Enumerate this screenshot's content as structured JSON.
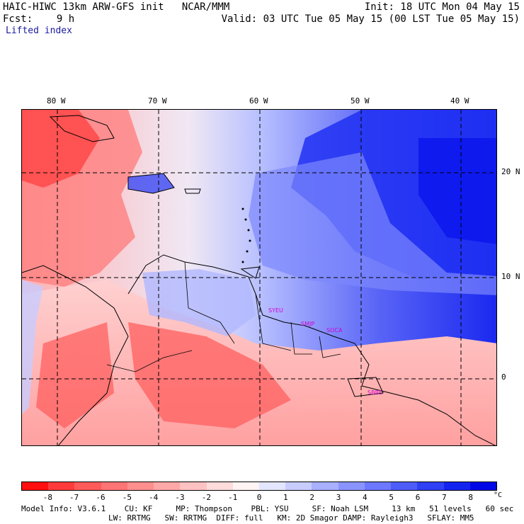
{
  "header": {
    "line1_left": "HAIC-HIWC 13km ARW-GFS init   NCAR/MMM",
    "line1_right": "Init: 18 UTC Mon 04 May 15",
    "line2_left": "Fcst:    9 h",
    "line2_right": "Valid: 03 UTC Tue 05 May 15 (00 LST Tue 05 May 15)",
    "field": "Lifted index"
  },
  "map": {
    "lon_labels": [
      "80 W",
      "70 W",
      "60 W",
      "50 W",
      "40 W"
    ],
    "lat_labels": [
      "20 N",
      "10 N",
      "0"
    ],
    "station_labels": [
      "SYEU",
      "SMJP",
      "SOCA",
      "SBBE"
    ],
    "station_color": "#d000d0"
  },
  "colorbar": {
    "colors": [
      "#ff1010",
      "#ff3a3a",
      "#ff5a5a",
      "#ff7474",
      "#ff8e8e",
      "#ffa8a8",
      "#ffc2c2",
      "#ffdcdc",
      "#fff4f4",
      "#e4e6ff",
      "#c8ccff",
      "#a8b0ff",
      "#8a94ff",
      "#6c78ff",
      "#4e5cf8",
      "#3040f4",
      "#1424f0",
      "#0008e8"
    ],
    "tick_labels": [
      "-8",
      "-7",
      "-6",
      "-5",
      "-4",
      "-3",
      "-2",
      "-1",
      "0",
      "1",
      "2",
      "3",
      "4",
      "5",
      "6",
      "7",
      "8"
    ],
    "unit": "°C"
  },
  "model_info": {
    "line1": "Model Info: V3.6.1    CU: KF     MP: Thompson    PBL: YSU     SF: Noah LSM     13 km   51 levels   60 sec",
    "line2": "LW: RRTMG   SW: RRTMG  DIFF: full   KM: 2D Smagor DAMP: Rayleigh3   SFLAY: MM5"
  }
}
